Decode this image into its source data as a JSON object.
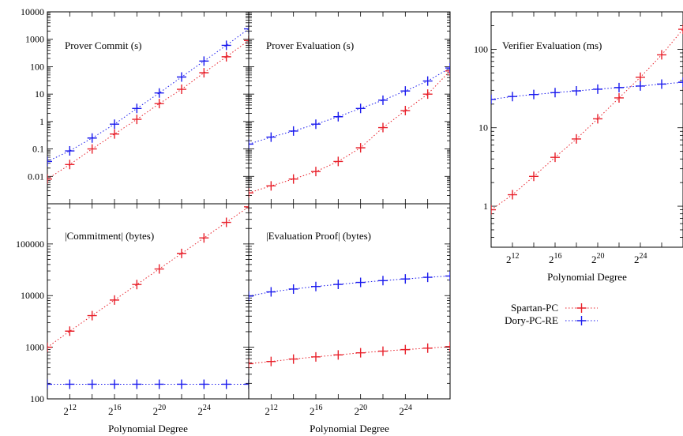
{
  "colors": {
    "spartan": "#e8202a",
    "dory": "#1a1aee",
    "axis": "#000000"
  },
  "legend": {
    "spartan_label": "Spartan-PC",
    "dory_label": "Dory-PC-RE"
  },
  "chart_data": [
    {
      "type": "line",
      "title": "Prover Commit (s)",
      "xscale": "log2",
      "yscale": "log",
      "ylim": [
        0.001,
        10000
      ],
      "ytick_labels": [
        "0.01",
        "0.1",
        "1",
        "10",
        "100",
        "1000",
        "10000"
      ],
      "series": [
        {
          "name": "Spartan-PC",
          "x": [
            10,
            12,
            14,
            16,
            18,
            20,
            22,
            24,
            26,
            28
          ],
          "values": [
            0.008,
            0.027,
            0.1,
            0.35,
            1.2,
            4.5,
            15,
            60,
            230,
            900
          ]
        },
        {
          "name": "Dory-PC-RE",
          "x": [
            10,
            12,
            14,
            16,
            18,
            20,
            22,
            24,
            26,
            28
          ],
          "values": [
            0.035,
            0.085,
            0.25,
            0.8,
            3,
            11,
            42,
            160,
            600,
            2400
          ]
        }
      ]
    },
    {
      "type": "line",
      "title": "Prover Evaluation (s)",
      "xscale": "log2",
      "yscale": "log",
      "ylim": [
        0.001,
        10000
      ],
      "series": [
        {
          "name": "Spartan-PC",
          "x": [
            10,
            12,
            14,
            16,
            18,
            20,
            22,
            24,
            26,
            28
          ],
          "values": [
            0.0025,
            0.0045,
            0.008,
            0.015,
            0.035,
            0.11,
            0.6,
            2.5,
            10,
            70
          ]
        },
        {
          "name": "Dory-PC-RE",
          "x": [
            10,
            12,
            14,
            16,
            18,
            20,
            22,
            24,
            26,
            28
          ],
          "values": [
            0.15,
            0.27,
            0.45,
            0.8,
            1.5,
            3,
            6,
            13,
            30,
            90
          ]
        }
      ]
    },
    {
      "type": "line",
      "title": "Verifier Evaluation (ms)",
      "xscale": "log2",
      "yscale": "log",
      "ylim": [
        0.3,
        300
      ],
      "ytick_labels": [
        "1",
        "10",
        "100"
      ],
      "xlabel": "Polynomial Degree",
      "xtick_labels": [
        "12",
        "16",
        "20",
        "24"
      ],
      "series": [
        {
          "name": "Spartan-PC",
          "x": [
            10,
            12,
            14,
            16,
            18,
            20,
            22,
            24,
            26,
            28
          ],
          "values": [
            0.9,
            1.4,
            2.4,
            4.2,
            7.2,
            13,
            24,
            44,
            85,
            180
          ]
        },
        {
          "name": "Dory-PC-RE",
          "x": [
            10,
            12,
            14,
            16,
            18,
            20,
            22,
            24,
            26,
            28
          ],
          "values": [
            23,
            25,
            26.5,
            28,
            29.5,
            31,
            32.5,
            34,
            36,
            38
          ]
        }
      ]
    },
    {
      "type": "line",
      "title": "|Commitment| (bytes)",
      "xscale": "log2",
      "yscale": "log",
      "ylim": [
        100,
        600000
      ],
      "ytick_labels": [
        "100",
        "1000",
        "10000",
        "100000"
      ],
      "xlabel": "Polynomial Degree",
      "xtick_labels": [
        "12",
        "16",
        "20",
        "24"
      ],
      "series": [
        {
          "name": "Spartan-PC",
          "x": [
            10,
            12,
            14,
            16,
            18,
            20,
            22,
            24,
            26,
            28
          ],
          "values": [
            1000,
            2050,
            4100,
            8200,
            16400,
            32800,
            65500,
            131000,
            262000,
            524000
          ]
        },
        {
          "name": "Dory-PC-RE",
          "x": [
            10,
            12,
            14,
            16,
            18,
            20,
            22,
            24,
            26,
            28
          ],
          "values": [
            192,
            192,
            192,
            192,
            192,
            192,
            192,
            192,
            192,
            192
          ]
        }
      ]
    },
    {
      "type": "line",
      "title": "|Evaluation Proof| (bytes)",
      "xscale": "log2",
      "yscale": "log",
      "ylim": [
        100,
        600000
      ],
      "xlabel": "Polynomial Degree",
      "xtick_labels": [
        "12",
        "16",
        "20",
        "24"
      ],
      "series": [
        {
          "name": "Spartan-PC",
          "x": [
            10,
            12,
            14,
            16,
            18,
            20,
            22,
            24,
            26,
            28
          ],
          "values": [
            480,
            530,
            590,
            650,
            710,
            780,
            840,
            900,
            960,
            1030
          ]
        },
        {
          "name": "Dory-PC-RE",
          "x": [
            10,
            12,
            14,
            16,
            18,
            20,
            22,
            24,
            26,
            28
          ],
          "values": [
            9800,
            11800,
            13400,
            15000,
            16500,
            18000,
            19500,
            21000,
            22600,
            24000
          ]
        }
      ]
    }
  ]
}
